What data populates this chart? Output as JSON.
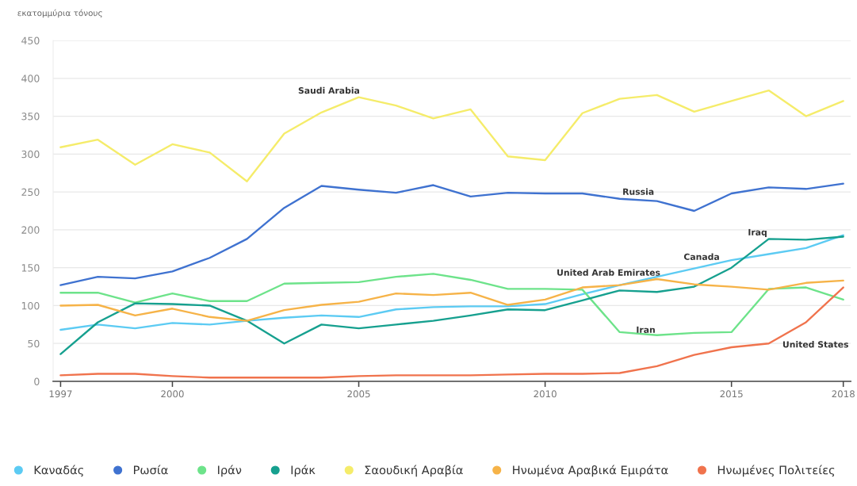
{
  "chart_data": {
    "type": "line",
    "ylabel": "εκατομμύρια τόνους",
    "x": [
      1997,
      1998,
      1999,
      2000,
      2001,
      2002,
      2003,
      2004,
      2005,
      2006,
      2007,
      2008,
      2009,
      2010,
      2011,
      2012,
      2013,
      2014,
      2015,
      2016,
      2017,
      2018
    ],
    "xlim": [
      1996.8,
      2018.2
    ],
    "xticks": [
      1997,
      2000,
      2005,
      2010,
      2015,
      2018
    ],
    "ylim": [
      0,
      450
    ],
    "yticks": [
      0,
      50,
      100,
      150,
      200,
      250,
      300,
      350,
      400,
      450
    ],
    "grid": "y",
    "legend": "bottom",
    "line_style": "solid",
    "series": [
      {
        "name": "Καναδάς",
        "color": "#5ccbf3",
        "values": [
          68,
          75,
          70,
          77,
          75,
          80,
          84,
          87,
          85,
          95,
          98,
          99,
          99,
          102,
          115,
          127,
          138,
          149,
          160,
          168,
          176,
          193
        ]
      },
      {
        "name": "Ρωσία",
        "color": "#3f72d0",
        "values": [
          127,
          138,
          136,
          145,
          163,
          188,
          229,
          258,
          253,
          249,
          259,
          244,
          249,
          248,
          248,
          241,
          238,
          225,
          248,
          256,
          254,
          261
        ]
      },
      {
        "name": "Ιράν",
        "color": "#6de38a",
        "values": [
          117,
          117,
          104,
          116,
          106,
          106,
          129,
          130,
          131,
          138,
          142,
          134,
          122,
          122,
          121,
          65,
          61,
          64,
          65,
          122,
          124,
          108
        ]
      },
      {
        "name": "Ιράκ",
        "color": "#16a08f",
        "values": [
          36,
          78,
          103,
          102,
          100,
          80,
          50,
          75,
          70,
          75,
          80,
          87,
          95,
          94,
          107,
          120,
          118,
          125,
          150,
          188,
          187,
          191
        ]
      },
      {
        "name": "Σαουδική Αραβία",
        "color": "#f5ec6a",
        "values": [
          309,
          319,
          286,
          313,
          302,
          264,
          327,
          355,
          375,
          364,
          347,
          359,
          297,
          292,
          354,
          373,
          378,
          356,
          370,
          384,
          350,
          370
        ]
      },
      {
        "name": "Ηνωμένα Αραβικά Εμιράτα",
        "color": "#f6b348",
        "values": [
          100,
          101,
          87,
          96,
          85,
          80,
          94,
          101,
          105,
          116,
          114,
          117,
          101,
          108,
          124,
          127,
          135,
          128,
          125,
          121,
          130,
          133
        ]
      },
      {
        "name": "Ηνωμένες Πολιτείες",
        "color": "#f0734d",
        "values": [
          8,
          10,
          10,
          7,
          5,
          5,
          5,
          5,
          7,
          8,
          8,
          8,
          9,
          10,
          10,
          11,
          20,
          35,
          45,
          50,
          78,
          124
        ]
      }
    ],
    "annotations": [
      {
        "text": "Saudi Arabia",
        "x": 2004.2,
        "y": 359
      },
      {
        "text": "Russia",
        "x": 2012.5,
        "y": 240
      },
      {
        "text": "Iraq",
        "x": 2015.7,
        "y": 177
      },
      {
        "text": "Canada",
        "x": 2014.2,
        "y": 151
      },
      {
        "text": "United Arab Emirates",
        "x": 2011.7,
        "y": 126
      },
      {
        "text": "Iran",
        "x": 2012.7,
        "y": 62
      },
      {
        "text": "United States",
        "x": 2016,
        "y": 50
      }
    ]
  }
}
